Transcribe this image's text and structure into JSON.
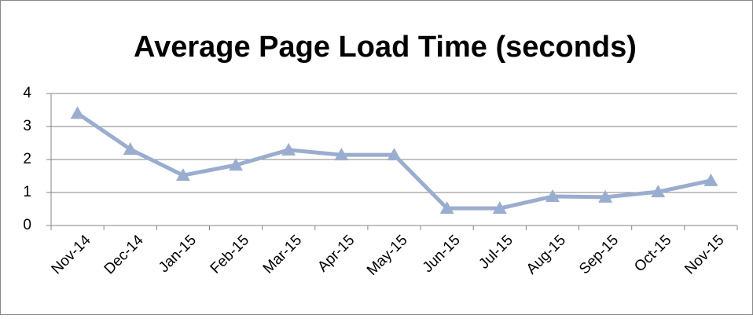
{
  "chart_data": {
    "type": "line",
    "title": "Average Page Load Time (seconds)",
    "categories": [
      "Nov-14",
      "Dec-14",
      "Jan-15",
      "Feb-15",
      "Mar-15",
      "Apr-15",
      "May-15",
      "Jun-15",
      "Jul-15",
      "Aug-15",
      "Sep-15",
      "Oct-15",
      "Nov-15"
    ],
    "values": [
      3.4,
      2.31,
      1.52,
      1.83,
      2.29,
      2.14,
      2.14,
      0.52,
      0.52,
      0.88,
      0.86,
      1.02,
      1.36
    ],
    "color": "#9badcf",
    "ylim": [
      0,
      4
    ],
    "yticks": [
      0,
      1,
      2,
      3,
      4
    ],
    "grid": true
  }
}
